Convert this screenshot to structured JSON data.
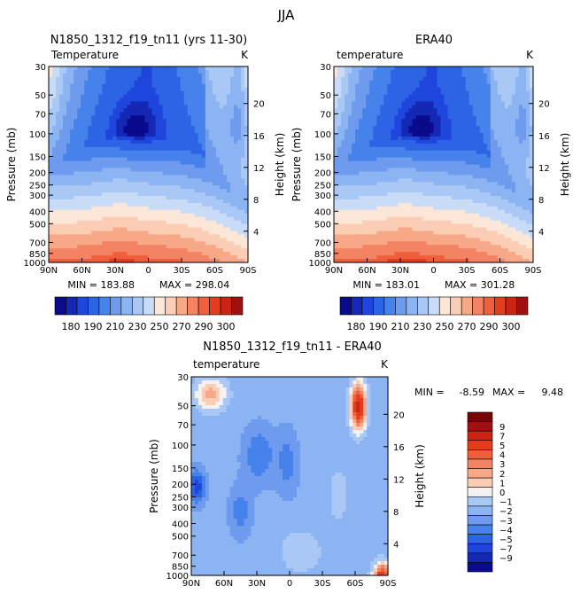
{
  "figure_title": "JJA",
  "colors": {
    "blues": [
      "#0a0a8c",
      "#1428b4",
      "#1e46dc",
      "#2d64e6",
      "#4682eb",
      "#6e9bee",
      "#8cb4f2",
      "#aac8f5",
      "#c8dcf8"
    ],
    "reds": [
      "#fbe6d7",
      "#fbcdb4",
      "#f7a887",
      "#f38362",
      "#ef5f3c",
      "#e63c1e",
      "#cd2314",
      "#a01010",
      "#780505"
    ]
  },
  "chart_data": [
    {
      "type": "heatmap",
      "title": "N1850_1312_f19_tn11 (yrs 11-30)",
      "variable": "Temperature",
      "units": "K",
      "ylabel": "Pressure (mb)",
      "ylabel_right": "Height (km)",
      "xticks": [
        "90N",
        "60N",
        "30N",
        "0",
        "30S",
        "60S",
        "90S"
      ],
      "yticks": [
        30,
        50,
        70,
        100,
        150,
        200,
        250,
        300,
        400,
        500,
        700,
        850,
        1000
      ],
      "height_ticks": [
        4,
        8,
        12,
        16,
        20
      ],
      "stats": {
        "min_label": "MIN = 183.88",
        "max_label": "MAX = 298.04",
        "min": 183.88,
        "max": 298.04
      },
      "levels": [
        180,
        185,
        190,
        200,
        210,
        220,
        230,
        240,
        250,
        260,
        270,
        280,
        290,
        295,
        300
      ]
    },
    {
      "type": "heatmap",
      "title": "ERA40",
      "variable": "temperature",
      "units": "K",
      "ylabel": "Pressure (mb)",
      "ylabel_right": "Height (km)",
      "xticks": [
        "90N",
        "60N",
        "30N",
        "0",
        "30S",
        "60S",
        "90S"
      ],
      "yticks": [
        30,
        50,
        70,
        100,
        150,
        200,
        250,
        300,
        400,
        500,
        700,
        850,
        1000
      ],
      "height_ticks": [
        4,
        8,
        12,
        16,
        20
      ],
      "stats": {
        "min_label": "MIN = 183.01",
        "max_label": "MAX = 301.28",
        "min": 183.01,
        "max": 301.28
      },
      "levels": [
        180,
        185,
        190,
        200,
        210,
        220,
        230,
        240,
        250,
        260,
        270,
        280,
        290,
        295,
        300
      ]
    },
    {
      "type": "heatmap",
      "title": "N1850_1312_f19_tn11 - ERA40",
      "variable": "temperature",
      "units": "K",
      "ylabel": "Pressure (mb)",
      "ylabel_right": "Height (km)",
      "xticks": [
        "90N",
        "60N",
        "30N",
        "0",
        "30S",
        "60S",
        "90S"
      ],
      "yticks": [
        30,
        50,
        70,
        100,
        150,
        200,
        250,
        300,
        400,
        500,
        700,
        850,
        1000
      ],
      "height_ticks": [
        4,
        8,
        12,
        16,
        20
      ],
      "stats": {
        "min_label": "MIN =",
        "min_value": "-8.59",
        "max_label": "MAX =",
        "max_value": "9.48",
        "min": -8.59,
        "max": 9.48
      },
      "levels": [
        -9,
        -7,
        -5,
        -4,
        -3,
        -2,
        -1,
        0,
        1,
        2,
        3,
        4,
        5,
        7,
        9
      ]
    }
  ],
  "colorbar_abs": {
    "labels": [
      "180",
      "190",
      "210",
      "230",
      "250",
      "270",
      "290",
      "300"
    ]
  },
  "colorbar_diff": {
    "labels": [
      "9",
      "7",
      "5",
      "4",
      "3",
      "2",
      "1",
      "0",
      "−1",
      "−2",
      "−3",
      "−4",
      "−5",
      "−7",
      "−9"
    ]
  }
}
